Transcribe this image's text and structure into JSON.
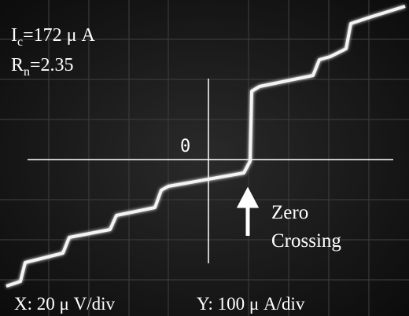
{
  "labels": {
    "critical_current": {
      "symbol": "I",
      "subscript": "c",
      "text": "=172 μ A"
    },
    "normal_resistance": {
      "symbol": "R",
      "subscript": "n",
      "text": "=2.35"
    },
    "origin": "0",
    "annotation": {
      "line1": "Zero",
      "line2": "Crossing"
    },
    "x_scale": "X: 20 μ V/div",
    "y_scale": "Y: 100 μ A/div"
  }
}
